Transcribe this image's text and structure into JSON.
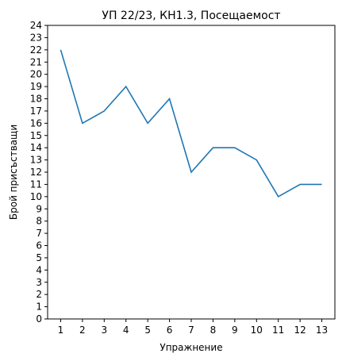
{
  "chart_data": {
    "type": "line",
    "title": "УП 22/23, КН1.3, Посещаемост",
    "xlabel": "Упражнение",
    "ylabel": "Брой присъстващи",
    "x": [
      1,
      2,
      3,
      4,
      5,
      6,
      7,
      8,
      9,
      10,
      11,
      12,
      13
    ],
    "y": [
      22,
      16,
      17,
      19,
      16,
      18,
      12,
      14,
      14,
      13,
      10,
      11,
      11
    ],
    "xlim": [
      0.4,
      13.6
    ],
    "ylim": [
      0,
      24
    ],
    "xticks": [
      "1",
      "2",
      "3",
      "4",
      "5",
      "6",
      "7",
      "8",
      "9",
      "10",
      "11",
      "12",
      "13"
    ],
    "yticks": [
      "0",
      "1",
      "2",
      "3",
      "4",
      "5",
      "6",
      "7",
      "8",
      "9",
      "10",
      "11",
      "12",
      "13",
      "14",
      "15",
      "16",
      "17",
      "18",
      "19",
      "20",
      "21",
      "22",
      "23",
      "24"
    ],
    "grid": false,
    "line_color": "#1f77b4"
  }
}
